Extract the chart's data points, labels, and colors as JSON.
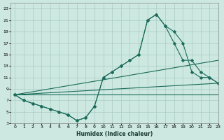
{
  "xlabel": "Humidex (Indice chaleur)",
  "bg_color": "#cce8e0",
  "grid_color": "#aaccC4",
  "line_color": "#1a6b5a",
  "xlim": [
    -0.5,
    23
  ],
  "ylim": [
    3,
    24
  ],
  "xticks": [
    0,
    1,
    2,
    3,
    4,
    5,
    6,
    7,
    8,
    9,
    10,
    11,
    12,
    13,
    14,
    15,
    16,
    17,
    18,
    19,
    20,
    21,
    22,
    23
  ],
  "yticks": [
    3,
    5,
    7,
    9,
    11,
    13,
    15,
    17,
    19,
    21,
    23
  ],
  "line1_x": [
    0,
    1,
    2,
    3,
    4,
    5,
    6,
    7,
    8,
    9,
    10,
    11,
    12,
    13,
    14,
    15,
    16,
    17,
    18,
    19,
    20,
    21,
    22,
    23
  ],
  "line1_y": [
    8,
    7,
    6.5,
    6,
    5.5,
    5,
    4.5,
    3.5,
    4,
    6,
    11,
    12,
    13,
    14,
    15,
    21,
    22,
    20,
    19,
    17,
    12,
    11,
    11,
    10
  ],
  "line2_x": [
    0,
    1,
    2,
    3,
    4,
    5,
    6,
    7,
    8,
    9,
    10,
    11,
    12,
    13,
    14,
    15,
    16,
    17,
    18,
    19,
    20,
    21,
    22,
    23
  ],
  "line2_y": [
    8,
    7,
    6.5,
    6,
    5.5,
    5,
    4.5,
    3.5,
    4,
    6,
    11,
    12,
    13,
    14,
    15,
    21,
    22,
    20,
    17,
    14,
    14,
    12,
    11,
    10
  ],
  "line3_x": [
    0,
    23
  ],
  "line3_y": [
    8,
    14
  ],
  "line4_x": [
    0,
    23
  ],
  "line4_y": [
    8,
    10
  ],
  "line5_x": [
    0,
    23
  ],
  "line5_y": [
    8,
    8
  ]
}
